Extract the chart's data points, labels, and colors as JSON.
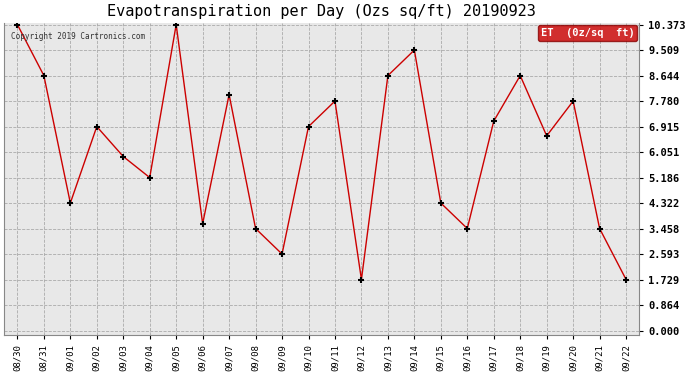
{
  "title": "Evapotranspiration per Day (Ozs sq/ft) 20190923",
  "copyright_text": "Copyright 2019 Cartronics.com",
  "legend_label": "ET  (0z/sq  ft)",
  "x_labels": [
    "08/30",
    "08/31",
    "09/01",
    "09/02",
    "09/03",
    "09/04",
    "09/05",
    "09/06",
    "09/07",
    "09/08",
    "09/09",
    "09/10",
    "09/11",
    "09/12",
    "09/13",
    "09/14",
    "09/15",
    "09/16",
    "09/17",
    "09/18",
    "09/19",
    "09/20",
    "09/21",
    "09/22"
  ],
  "y_values": [
    10.373,
    8.644,
    4.322,
    6.915,
    5.9,
    5.186,
    10.373,
    3.62,
    8.0,
    3.458,
    2.593,
    6.915,
    7.78,
    1.729,
    8.644,
    9.509,
    4.322,
    3.458,
    7.1,
    8.644,
    6.6,
    7.78,
    3.458,
    1.729
  ],
  "y_ticks": [
    0.0,
    0.864,
    1.729,
    2.593,
    3.458,
    4.322,
    5.186,
    6.051,
    6.915,
    7.78,
    8.644,
    9.509,
    10.373
  ],
  "line_color": "#cc0000",
  "marker_color": "#000000",
  "background_color": "#ffffff",
  "plot_bg_color": "#e8e8e8",
  "grid_color": "#aaaaaa",
  "title_fontsize": 11,
  "legend_bg_color": "#cc0000",
  "legend_text_color": "#ffffff"
}
